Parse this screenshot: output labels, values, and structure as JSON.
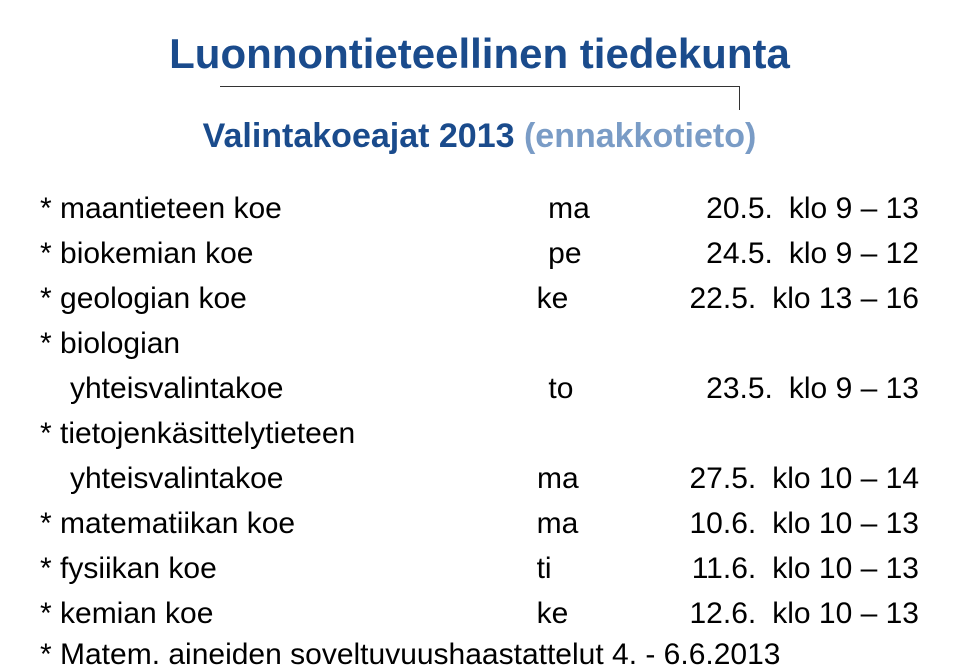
{
  "title": "Luonnontieteellinen tiedekunta",
  "subtitle_main": "Valintakoeajat 2013 ",
  "subtitle_fade": "(ennakkotieto)",
  "rows": [
    {
      "label": "* maantieteen koe",
      "indent": false,
      "day": "ma",
      "date": "20.5.",
      "time": "klo 9 – 13"
    },
    {
      "label": "* biokemian koe",
      "indent": false,
      "day": "pe",
      "date": "24.5.",
      "time": "klo 9 – 12"
    },
    {
      "label": "* geologian koe",
      "indent": false,
      "day": "ke",
      "date": "22.5.",
      "time": "klo 13 – 16"
    },
    {
      "label": "* biologian",
      "indent": false,
      "day": "",
      "date": "",
      "time": ""
    },
    {
      "label": "yhteisvalintakoe",
      "indent": true,
      "day": "to",
      "date": "23.5.",
      "time": "klo 9 – 13"
    },
    {
      "label": "* tietojenkäsittelytieteen",
      "indent": false,
      "day": "",
      "date": "",
      "time": ""
    },
    {
      "label": "yhteisvalintakoe",
      "indent": true,
      "day": "ma",
      "date": "27.5.",
      "time": "klo 10 – 14"
    },
    {
      "label": "* matematiikan koe",
      "indent": false,
      "day": "ma",
      "date": "10.6.",
      "time": "klo 10 – 13"
    },
    {
      "label": "* fysiikan koe",
      "indent": false,
      "day": "ti",
      "date": "11.6.",
      "time": "klo 10 – 13"
    },
    {
      "label": "* kemian koe",
      "indent": false,
      "day": "ke",
      "date": "12.6.",
      "time": "klo 10 – 13"
    }
  ],
  "footer": "* Matem. aineiden soveltuvuushaastattelut 4. - 6.6.2013"
}
